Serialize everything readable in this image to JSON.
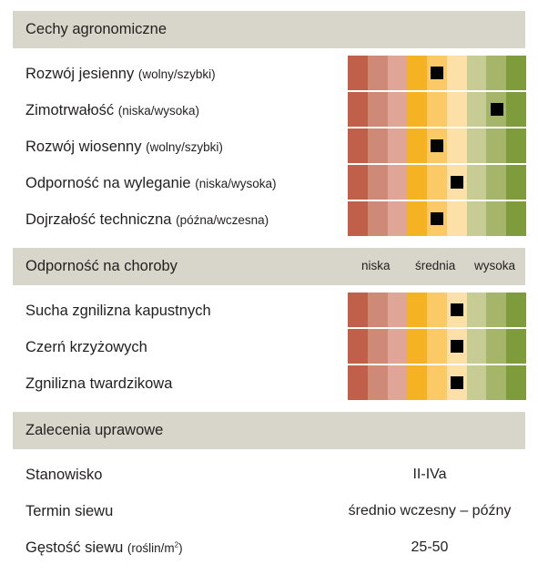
{
  "colors": {
    "header_bg": "#d8d6cb",
    "scale": [
      "#c0604b",
      "#cf8a77",
      "#dfa597",
      "#f5b324",
      "#fbc966",
      "#fde0a8",
      "#c7cb94",
      "#a5b66b",
      "#7f9c3c"
    ],
    "marker": "#000000"
  },
  "agro": {
    "title": "Cechy agronomiczne",
    "traits": [
      {
        "name": "Rozwój jesienny",
        "hint": "(wolny/szybki)",
        "level": 4
      },
      {
        "name": "Zimotrwałość",
        "hint": "(niska/wysoka)",
        "level": 7
      },
      {
        "name": "Rozwój wiosenny",
        "hint": "(wolny/szybki)",
        "level": 4
      },
      {
        "name": "Odporność na wyleganie",
        "hint": "(niska/wysoka)",
        "level": 5
      },
      {
        "name": "Dojrzałość techniczna",
        "hint": "(późna/wczesna)",
        "level": 4
      }
    ]
  },
  "disease": {
    "title": "Odporność na choroby",
    "scale_low": "niska",
    "scale_mid": "średnia",
    "scale_high": "wysoka",
    "traits": [
      {
        "name": "Sucha zgnilizna kapustnych",
        "level": 5
      },
      {
        "name": "Czerń krzyżowych",
        "level": 5
      },
      {
        "name": "Zgnilizna twardzikowa",
        "level": 5
      }
    ]
  },
  "recommendations": {
    "title": "Zalecenia uprawowe",
    "items": [
      {
        "label": "Stanowisko",
        "hint": "",
        "value": "II-IVa"
      },
      {
        "label": "Termin siewu",
        "hint": "",
        "value": "średnio wczesny – późny"
      },
      {
        "label": "Gęstość siewu",
        "hint": "(roślin/m",
        "hint_sup": "2",
        "hint_end": ")",
        "value": "25-50"
      }
    ]
  }
}
